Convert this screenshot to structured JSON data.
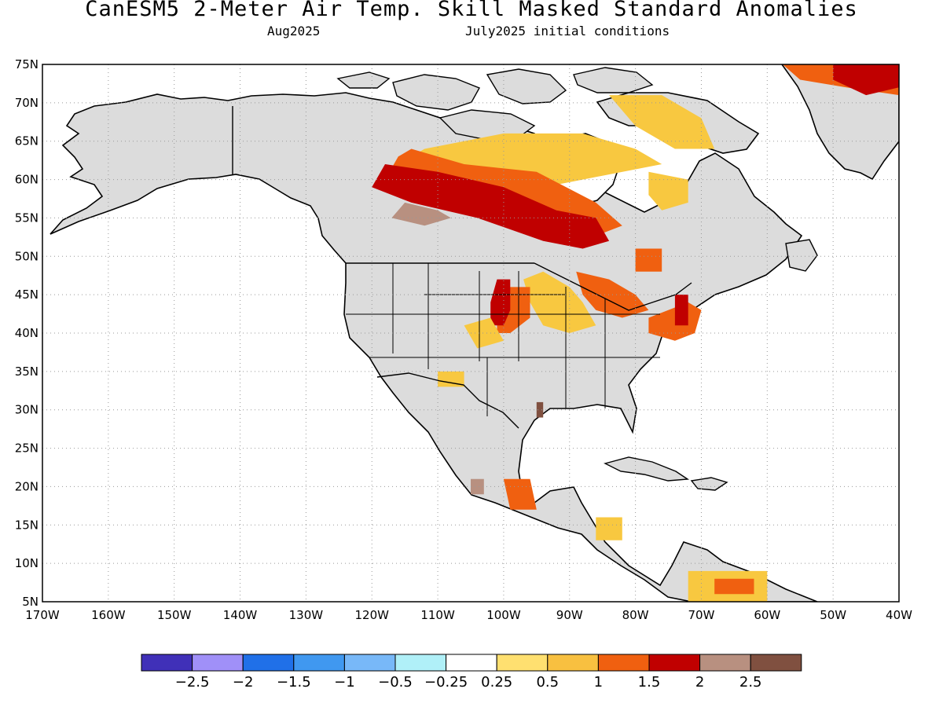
{
  "title": "CanESM5 2-Meter Air Temp. Skill Masked Standard Anomalies",
  "subtitle_left": "Aug2025",
  "subtitle_right": "July2025 initial conditions",
  "map": {
    "lat_range": [
      5,
      75
    ],
    "lon_range": [
      -170,
      -40
    ],
    "lat_ticks": [
      "75N",
      "70N",
      "65N",
      "60N",
      "55N",
      "50N",
      "45N",
      "40N",
      "35N",
      "30N",
      "25N",
      "20N",
      "15N",
      "10N",
      "5N"
    ],
    "lon_ticks": [
      "170W",
      "160W",
      "150W",
      "140W",
      "130W",
      "120W",
      "110W",
      "100W",
      "90W",
      "80W",
      "70W",
      "60W",
      "50W",
      "40W"
    ],
    "gridlines": true,
    "land_color": "#dcdcdc",
    "anomaly_regions": [
      {
        "class": "0.5-1",
        "color": "#f8c840",
        "poly": [
          [
            -112,
            64
          ],
          [
            -100,
            66
          ],
          [
            -88,
            66
          ],
          [
            -80,
            64
          ],
          [
            -76,
            62
          ],
          [
            -88,
            60
          ],
          [
            -100,
            58
          ],
          [
            -110,
            58
          ],
          [
            -116,
            60
          ],
          [
            -116,
            62
          ]
        ]
      },
      {
        "class": "1-1.5",
        "color": "#f06010",
        "poly": [
          [
            -114,
            64
          ],
          [
            -106,
            62
          ],
          [
            -95,
            61
          ],
          [
            -86,
            57
          ],
          [
            -82,
            54
          ],
          [
            -88,
            52
          ],
          [
            -100,
            55
          ],
          [
            -112,
            58
          ],
          [
            -118,
            60
          ],
          [
            -116,
            63
          ]
        ]
      },
      {
        "class": "1.5-2",
        "color": "#c00000",
        "poly": [
          [
            -118,
            62
          ],
          [
            -110,
            61
          ],
          [
            -100,
            59
          ],
          [
            -92,
            56
          ],
          [
            -86,
            55
          ],
          [
            -84,
            52
          ],
          [
            -88,
            51
          ],
          [
            -94,
            52
          ],
          [
            -104,
            55
          ],
          [
            -114,
            57
          ],
          [
            -120,
            59
          ]
        ]
      },
      {
        "class": "2-2.5",
        "color": "#b89080",
        "poly": [
          [
            -115,
            57
          ],
          [
            -110,
            56
          ],
          [
            -108,
            55
          ],
          [
            -112,
            54
          ],
          [
            -117,
            55
          ]
        ]
      },
      {
        "class": "0.5-1",
        "color": "#f8c840",
        "poly": [
          [
            -94,
            48
          ],
          [
            -90,
            46
          ],
          [
            -88,
            44
          ],
          [
            -86,
            41
          ],
          [
            -90,
            40
          ],
          [
            -94,
            41
          ],
          [
            -96,
            44
          ],
          [
            -97,
            47
          ]
        ]
      },
      {
        "class": "1-1.5",
        "color": "#f06010",
        "poly": [
          [
            -99,
            46
          ],
          [
            -96,
            46
          ],
          [
            -96,
            42
          ],
          [
            -99,
            40
          ],
          [
            -101,
            40
          ],
          [
            -101,
            44
          ]
        ]
      },
      {
        "class": "1.5-2",
        "color": "#c00000",
        "poly": [
          [
            -101,
            47
          ],
          [
            -99,
            47
          ],
          [
            -99,
            43
          ],
          [
            -100,
            41
          ],
          [
            -102,
            41
          ],
          [
            -102,
            44
          ]
        ]
      },
      {
        "class": "1-1.5",
        "color": "#f06010",
        "poly": [
          [
            -89,
            48
          ],
          [
            -84,
            47
          ],
          [
            -80,
            45
          ],
          [
            -78,
            43
          ],
          [
            -82,
            42
          ],
          [
            -86,
            43
          ],
          [
            -88,
            45
          ]
        ]
      },
      {
        "class": "1-1.5",
        "color": "#f06010",
        "poly": [
          [
            -78,
            42
          ],
          [
            -72,
            44
          ],
          [
            -70,
            43
          ],
          [
            -71,
            40
          ],
          [
            -74,
            39
          ],
          [
            -78,
            40
          ]
        ]
      },
      {
        "class": "1.5-2",
        "color": "#c00000",
        "poly": [
          [
            -74,
            45
          ],
          [
            -72,
            45
          ],
          [
            -72,
            41
          ],
          [
            -74,
            41
          ]
        ]
      },
      {
        "class": "1-1.5",
        "color": "#f06010",
        "poly": [
          [
            -80,
            51
          ],
          [
            -76,
            51
          ],
          [
            -76,
            48
          ],
          [
            -80,
            48
          ]
        ]
      },
      {
        "class": "0.5-1",
        "color": "#f8c840",
        "poly": [
          [
            -78,
            61
          ],
          [
            -72,
            60
          ],
          [
            -72,
            57
          ],
          [
            -76,
            56
          ],
          [
            -78,
            58
          ]
        ]
      },
      {
        "class": "0.5-1",
        "color": "#f8c840",
        "poly": [
          [
            -84,
            71
          ],
          [
            -76,
            71
          ],
          [
            -70,
            68
          ],
          [
            -68,
            64
          ],
          [
            -74,
            64
          ],
          [
            -80,
            67
          ]
        ]
      },
      {
        "class": "1-1.5",
        "color": "#f06010",
        "poly": [
          [
            -59,
            76
          ],
          [
            -40,
            76
          ],
          [
            -40,
            71
          ],
          [
            -48,
            72
          ],
          [
            -55,
            73
          ]
        ]
      },
      {
        "class": "1.5-2",
        "color": "#c00000",
        "poly": [
          [
            -50,
            76
          ],
          [
            -40,
            76
          ],
          [
            -40,
            72
          ],
          [
            -45,
            71
          ],
          [
            -50,
            73
          ]
        ]
      },
      {
        "class": "1-1.5",
        "color": "#f06010",
        "poly": [
          [
            -100,
            21
          ],
          [
            -96,
            21
          ],
          [
            -95,
            17
          ],
          [
            -99,
            17
          ]
        ]
      },
      {
        "class": "0.5-1",
        "color": "#f8c840",
        "poly": [
          [
            -110,
            35
          ],
          [
            -106,
            35
          ],
          [
            -106,
            33
          ],
          [
            -110,
            33
          ]
        ]
      },
      {
        "class": "0.5-1",
        "color": "#f8c840",
        "poly": [
          [
            -106,
            41
          ],
          [
            -102,
            42
          ],
          [
            -100,
            39
          ],
          [
            -104,
            38
          ]
        ]
      },
      {
        "class": "0.5-1",
        "color": "#f8c840",
        "poly": [
          [
            -72,
            9
          ],
          [
            -60,
            9
          ],
          [
            -60,
            5
          ],
          [
            -72,
            5
          ]
        ]
      },
      {
        "class": "1-1.5",
        "color": "#f06010",
        "poly": [
          [
            -68,
            8
          ],
          [
            -62,
            8
          ],
          [
            -62,
            6
          ],
          [
            -68,
            6
          ]
        ]
      },
      {
        "class": "2-2.5",
        "color": "#b89080",
        "poly": [
          [
            -105,
            21
          ],
          [
            -103,
            21
          ],
          [
            -103,
            19
          ],
          [
            -105,
            19
          ]
        ]
      },
      {
        "class": "2.5+",
        "color": "#805040",
        "poly": [
          [
            -95,
            31
          ],
          [
            -94,
            31
          ],
          [
            -94,
            29
          ],
          [
            -95,
            29
          ]
        ]
      },
      {
        "class": "0.5-1",
        "color": "#f8c840",
        "poly": [
          [
            -86,
            16
          ],
          [
            -82,
            16
          ],
          [
            -82,
            13
          ],
          [
            -86,
            13
          ]
        ]
      }
    ]
  },
  "colorbar": {
    "colors": [
      "#4030b8",
      "#a090f8",
      "#2070e8",
      "#4098f0",
      "#78b8f8",
      "#b0f0f8",
      "#ffffff",
      "#ffe070",
      "#f8c040",
      "#f06010",
      "#c00000",
      "#b89080",
      "#805040"
    ],
    "labels": [
      "−2.5",
      "−2",
      "−1.5",
      "−1",
      "−0.5",
      "−0.25",
      "0.25",
      "0.5",
      "1",
      "1.5",
      "2",
      "2.5"
    ]
  }
}
